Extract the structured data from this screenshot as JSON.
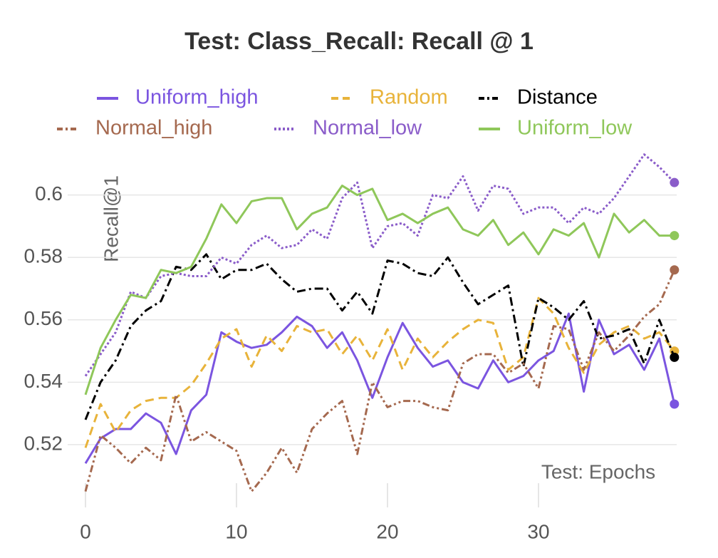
{
  "chart_data": {
    "type": "line",
    "title": "Test: Class_Recall: Recall @ 1",
    "x_label": "Test: Epochs",
    "y_label": "Recall@1",
    "x": [
      0,
      1,
      2,
      3,
      4,
      5,
      6,
      7,
      8,
      9,
      10,
      11,
      12,
      13,
      14,
      15,
      16,
      17,
      18,
      19,
      20,
      21,
      22,
      23,
      24,
      25,
      26,
      27,
      28,
      29,
      30,
      31,
      32,
      33,
      34,
      35,
      36,
      37,
      38,
      39
    ],
    "xlim": [
      0,
      39
    ],
    "xticks": [
      0,
      10,
      20,
      30
    ],
    "ylim": [
      0.5,
      0.615
    ],
    "yticks": [
      0.52,
      0.54,
      0.56,
      0.58,
      0.6
    ],
    "grid": true,
    "series": [
      {
        "name": "Uniform_high",
        "color": "#7b55e0",
        "dash": "solid",
        "values": [
          0.514,
          0.522,
          0.525,
          0.525,
          0.53,
          0.527,
          0.517,
          0.531,
          0.536,
          0.556,
          0.553,
          0.551,
          0.552,
          0.556,
          0.561,
          0.558,
          0.551,
          0.556,
          0.547,
          0.535,
          0.548,
          0.559,
          0.551,
          0.545,
          0.547,
          0.54,
          0.538,
          0.547,
          0.54,
          0.542,
          0.547,
          0.55,
          0.562,
          0.537,
          0.56,
          0.549,
          0.552,
          0.544,
          0.554,
          0.533
        ]
      },
      {
        "name": "Random",
        "color": "#e8b33a",
        "dash": "dashed",
        "values": [
          0.519,
          0.533,
          0.524,
          0.531,
          0.534,
          0.535,
          0.535,
          0.539,
          0.546,
          0.554,
          0.557,
          0.545,
          0.555,
          0.55,
          0.558,
          0.556,
          0.557,
          0.549,
          0.555,
          0.547,
          0.557,
          0.544,
          0.554,
          0.548,
          0.553,
          0.557,
          0.56,
          0.559,
          0.544,
          0.548,
          0.567,
          0.562,
          0.551,
          0.543,
          0.552,
          0.556,
          0.558,
          0.554,
          0.556,
          0.55
        ]
      },
      {
        "name": "Distance",
        "color": "#000000",
        "dash": "dashdot",
        "values": [
          0.528,
          0.54,
          0.547,
          0.558,
          0.563,
          0.566,
          0.577,
          0.576,
          0.581,
          0.573,
          0.576,
          0.576,
          0.578,
          0.573,
          0.569,
          0.57,
          0.57,
          0.563,
          0.569,
          0.562,
          0.579,
          0.578,
          0.575,
          0.574,
          0.58,
          0.572,
          0.565,
          0.568,
          0.571,
          0.545,
          0.567,
          0.564,
          0.56,
          0.566,
          0.554,
          0.555,
          0.557,
          0.546,
          0.56,
          0.548
        ]
      },
      {
        "name": "Normal_high",
        "color": "#a5694f",
        "dash": "dashdotdot",
        "values": [
          0.505,
          0.523,
          0.519,
          0.514,
          0.519,
          0.515,
          0.536,
          0.521,
          0.524,
          0.521,
          0.518,
          0.505,
          0.511,
          0.519,
          0.511,
          0.525,
          0.53,
          0.534,
          0.517,
          0.54,
          0.532,
          0.534,
          0.534,
          0.532,
          0.531,
          0.546,
          0.549,
          0.549,
          0.543,
          0.546,
          0.538,
          0.558,
          0.557,
          0.544,
          0.556,
          0.55,
          0.555,
          0.561,
          0.565,
          0.576
        ]
      },
      {
        "name": "Normal_low",
        "color": "#8a5cc9",
        "dash": "dotted",
        "values": [
          0.542,
          0.549,
          0.556,
          0.569,
          0.567,
          0.574,
          0.575,
          0.574,
          0.574,
          0.58,
          0.578,
          0.584,
          0.587,
          0.583,
          0.584,
          0.589,
          0.586,
          0.599,
          0.604,
          0.583,
          0.59,
          0.591,
          0.587,
          0.6,
          0.599,
          0.606,
          0.595,
          0.603,
          0.602,
          0.594,
          0.596,
          0.596,
          0.591,
          0.596,
          0.594,
          0.599,
          0.606,
          0.613,
          0.609,
          0.604
        ]
      },
      {
        "name": "Uniform_low",
        "color": "#8fc75a",
        "dash": "solid",
        "values": [
          0.536,
          0.551,
          0.56,
          0.568,
          0.567,
          0.576,
          0.575,
          0.577,
          0.586,
          0.597,
          0.591,
          0.598,
          0.599,
          0.599,
          0.589,
          0.594,
          0.596,
          0.603,
          0.6,
          0.602,
          0.592,
          0.594,
          0.591,
          0.594,
          0.596,
          0.589,
          0.587,
          0.592,
          0.584,
          0.588,
          0.581,
          0.589,
          0.587,
          0.591,
          0.58,
          0.594,
          0.588,
          0.592,
          0.587,
          0.587
        ]
      }
    ]
  }
}
